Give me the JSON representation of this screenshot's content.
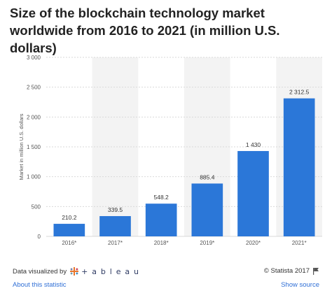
{
  "title": "Size of the blockchain technology market worldwide from 2016 to 2021 (in million U.S. dollars)",
  "chart_data": {
    "type": "bar",
    "categories": [
      "2016*",
      "2017*",
      "2018*",
      "2019*",
      "2020*",
      "2021*"
    ],
    "values": [
      210.2,
      339.5,
      548.2,
      885.4,
      1430,
      2312.5
    ],
    "value_labels": [
      "210.2",
      "339.5",
      "548.2",
      "885.4",
      "1 430",
      "2 312.5"
    ],
    "ylabel": "Market in million U.S. dollars",
    "ylim": [
      0,
      3000
    ],
    "yticks": [
      0,
      500,
      1000,
      1500,
      2000,
      2500,
      3000
    ],
    "ytick_labels": [
      "0",
      "500",
      "1 000",
      "1 500",
      "2 000",
      "2 500",
      "3 000"
    ],
    "grid": true,
    "bar_color": "#2b77d8",
    "band_color": "#f3f3f3"
  },
  "footer": {
    "data_visualized_by": "Data visualized by",
    "tableau_brand": "+ a b l e a u",
    "copyright": "© Statista 2017",
    "about_link": "About this statistic",
    "source_link": "Show source"
  },
  "colors": {
    "link": "#2f6fd6"
  }
}
